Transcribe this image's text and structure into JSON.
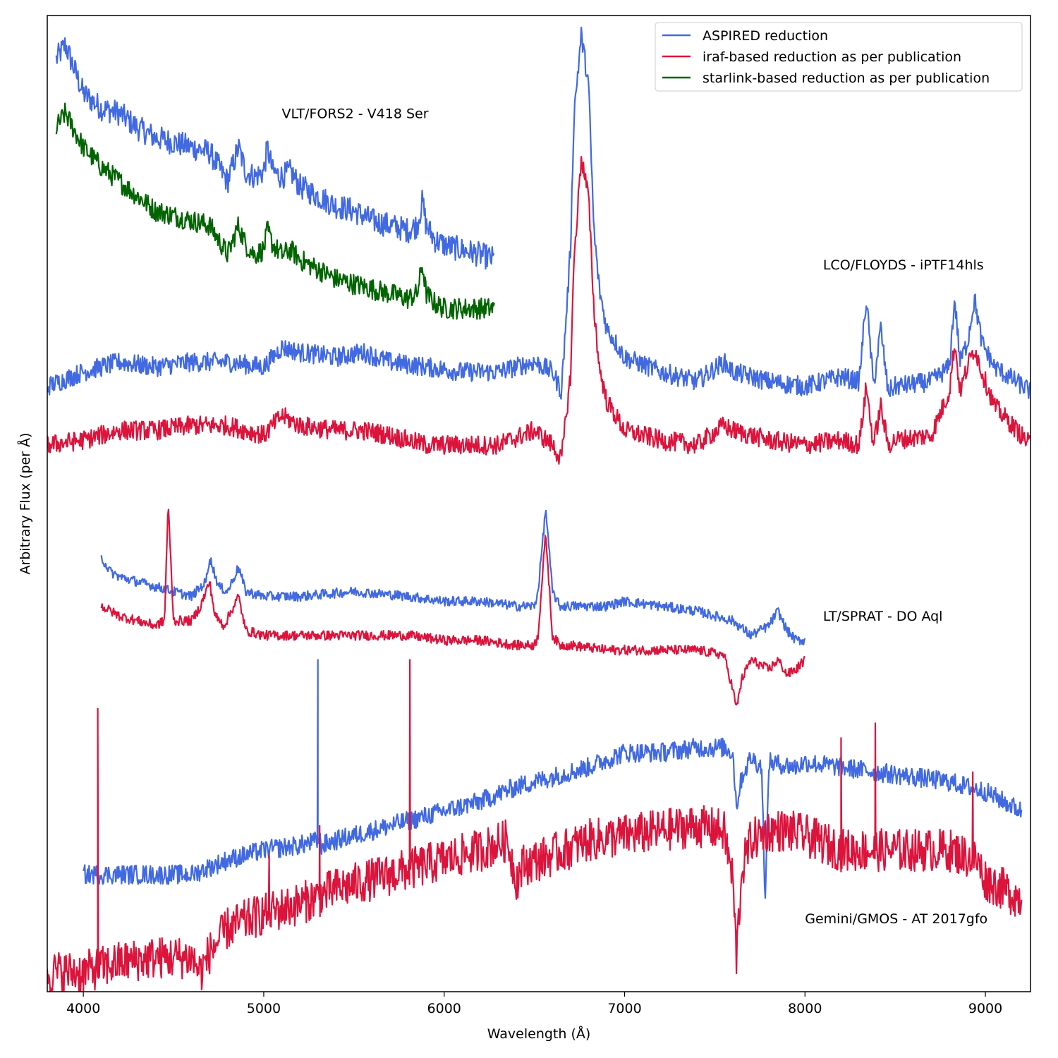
{
  "chart_data": {
    "type": "line",
    "title": "",
    "xlabel": "Wavelength (Å)",
    "ylabel": "Arbitrary Flux (per Å)",
    "xlim": [
      3800,
      9250
    ],
    "ylim": [
      0,
      100
    ],
    "xticks": [
      4000,
      5000,
      6000,
      7000,
      8000,
      9000
    ],
    "yticks_shown": false,
    "grid": false,
    "legend": {
      "position": "top-right",
      "entries": [
        {
          "label": "ASPIRED reduction",
          "color": "#4169e1"
        },
        {
          "label": "iraf-based reduction as per publication",
          "color": "#dc143c"
        },
        {
          "label": "starlink-based reduction as per publication",
          "color": "#006400"
        }
      ]
    },
    "annotations": [
      {
        "text": "VLT/FORS2 - V418 Ser",
        "x": 5100,
        "y": 89.5
      },
      {
        "text": "LCO/FLOYDS - iPTF14hls",
        "x": 8100,
        "y": 74
      },
      {
        "text": "LT/SPRAT - DO Aql",
        "x": 8100,
        "y": 38
      },
      {
        "text": "Gemini/GMOS - AT 2017gfo",
        "x": 8000,
        "y": 7
      }
    ],
    "series": [
      {
        "name": "VLT/FORS2 - V418 Ser ASPIRED",
        "reduction": "ASPIRED reduction",
        "color": "#4169e1",
        "noise": 1.3,
        "x": [
          3850,
          3900,
          4000,
          4100,
          4200,
          4300,
          4400,
          4500,
          4600,
          4700,
          4750,
          4800,
          4860,
          4900,
          4950,
          5000,
          5020,
          5050,
          5100,
          5150,
          5200,
          5300,
          5400,
          5500,
          5600,
          5700,
          5800,
          5850,
          5880,
          5900,
          5950,
          6000,
          6100,
          6200,
          6280
        ],
        "y": [
          95.5,
          97,
          92,
          90.5,
          90,
          88.5,
          87.5,
          87,
          86.5,
          86,
          84.5,
          83,
          86.5,
          84,
          83.5,
          84,
          86.5,
          84,
          83.5,
          84,
          82.5,
          81.5,
          80.5,
          80,
          79,
          78.5,
          78,
          78.5,
          81,
          78.5,
          77,
          76.5,
          76,
          75.5,
          75
        ]
      },
      {
        "name": "VLT/FORS2 - V418 Ser starlink",
        "reduction": "starlink-based reduction as per publication",
        "color": "#006400",
        "noise": 1.1,
        "x": [
          3850,
          3900,
          4000,
          4100,
          4200,
          4300,
          4400,
          4500,
          4600,
          4700,
          4750,
          4800,
          4860,
          4900,
          4950,
          5000,
          5020,
          5050,
          5100,
          5150,
          5200,
          5300,
          5400,
          5500,
          5600,
          5700,
          5800,
          5850,
          5880,
          5900,
          5950,
          6000,
          6100,
          6200,
          6280
        ],
        "y": [
          88.5,
          90,
          86.5,
          84.5,
          83,
          81.5,
          80,
          79.5,
          79,
          78.5,
          77,
          75.5,
          78.5,
          76.5,
          75.5,
          76,
          78,
          76.5,
          75.5,
          76,
          75,
          74,
          73,
          72.5,
          72,
          71.5,
          71,
          71.5,
          74.5,
          71.5,
          70.5,
          70,
          70,
          70,
          70
        ]
      },
      {
        "name": "LCO/FLOYDS - iPTF14hls ASPIRED",
        "reduction": "ASPIRED reduction",
        "color": "#4169e1",
        "noise": 1.0,
        "x": [
          3800,
          4000,
          4200,
          4400,
          4600,
          4800,
          5000,
          5100,
          5200,
          5400,
          5550,
          5700,
          5900,
          6100,
          6300,
          6500,
          6600,
          6650,
          6700,
          6720,
          6760,
          6800,
          6830,
          6860,
          6900,
          7000,
          7200,
          7400,
          7550,
          7600,
          7800,
          8000,
          8200,
          8300,
          8340,
          8380,
          8420,
          8460,
          8500,
          8700,
          8800,
          8830,
          8860,
          8900,
          8940,
          8980,
          9050,
          9250
        ],
        "y": [
          62,
          63.5,
          64.5,
          64,
          64.5,
          64.5,
          64,
          66,
          65.5,
          65,
          65.5,
          64.5,
          64,
          63.5,
          63.5,
          64.5,
          63.5,
          61.5,
          76,
          90,
          98,
          93,
          78,
          72,
          68,
          65,
          63.5,
          62.5,
          64.5,
          63.5,
          62.5,
          62,
          63,
          62.5,
          71,
          62,
          68,
          61.5,
          62,
          62.5,
          64,
          71,
          64.5,
          66.5,
          71,
          66.5,
          64,
          61.5
        ]
      },
      {
        "name": "LCO/FLOYDS - iPTF14hls iraf",
        "reduction": "iraf-based reduction as per publication",
        "color": "#dc143c",
        "noise": 1.0,
        "x": [
          3800,
          4000,
          4200,
          4400,
          4600,
          4800,
          5000,
          5100,
          5200,
          5400,
          5550,
          5700,
          5900,
          6100,
          6300,
          6500,
          6600,
          6650,
          6700,
          6720,
          6760,
          6800,
          6830,
          6860,
          6900,
          7000,
          7200,
          7400,
          7550,
          7600,
          7800,
          8000,
          8200,
          8300,
          8340,
          8380,
          8420,
          8460,
          8500,
          8700,
          8800,
          8830,
          8860,
          8900,
          8940,
          8980,
          9050,
          9250
        ],
        "y": [
          56,
          56.5,
          57.5,
          57.5,
          58,
          58,
          57,
          59,
          58,
          57.5,
          57.5,
          57,
          56,
          56,
          56,
          57.5,
          56,
          54.5,
          63,
          75,
          85.5,
          81.5,
          70,
          64,
          60.5,
          57.5,
          56.5,
          56,
          58,
          57.5,
          56.5,
          56,
          56.5,
          56,
          62,
          56,
          60,
          56,
          56.5,
          57,
          61.5,
          66.5,
          61.5,
          64,
          66,
          63.5,
          60,
          56
        ]
      },
      {
        "name": "LT/SPRAT - DO Aql ASPIRED",
        "reduction": "ASPIRED reduction",
        "color": "#4169e1",
        "noise": 0.5,
        "x": [
          4100,
          4150,
          4200,
          4300,
          4400,
          4500,
          4600,
          4680,
          4700,
          4750,
          4800,
          4860,
          4900,
          5000,
          5200,
          5500,
          5800,
          6000,
          6200,
          6400,
          6500,
          6520,
          6563,
          6600,
          6640,
          6700,
          6900,
          7000,
          7200,
          7400,
          7500,
          7600,
          7700,
          7800,
          7850,
          7900,
          7950,
          8000
        ],
        "y": [
          44.5,
          43,
          42.5,
          42,
          41.5,
          41,
          40.5,
          42,
          44.5,
          41.5,
          41,
          43.5,
          41,
          40.5,
          40.5,
          41,
          40.5,
          40,
          40,
          39.5,
          39.5,
          41,
          49.5,
          41,
          39.5,
          39.5,
          39.5,
          40,
          39.5,
          39,
          38.5,
          38,
          36.5,
          37.5,
          39,
          37,
          36,
          36
        ]
      },
      {
        "name": "LT/SPRAT - DO Aql iraf",
        "reduction": "iraf-based reduction as per publication",
        "color": "#dc143c",
        "noise": 0.5,
        "x": [
          4100,
          4200,
          4300,
          4400,
          4450,
          4470,
          4500,
          4600,
          4650,
          4700,
          4730,
          4780,
          4860,
          4900,
          5000,
          5200,
          5500,
          5800,
          6000,
          6200,
          6400,
          6500,
          6520,
          6563,
          6600,
          6640,
          6700,
          6900,
          7000,
          7200,
          7400,
          7550,
          7600,
          7620,
          7650,
          7700,
          7800,
          7850,
          7900,
          7950,
          8000
        ],
        "y": [
          39.5,
          38.5,
          38,
          37.5,
          38,
          50,
          38,
          38,
          39.5,
          42,
          38.5,
          37.5,
          40.5,
          37,
          36.5,
          36.5,
          36.5,
          36.5,
          36,
          36,
          35.5,
          35.5,
          36.5,
          47,
          36.5,
          35.5,
          35.5,
          35,
          35,
          35,
          35,
          34.5,
          31,
          29,
          32,
          34,
          33,
          34,
          32.5,
          33,
          34
        ]
      },
      {
        "name": "Gemini/GMOS - AT 2017gfo ASPIRED",
        "reduction": "ASPIRED reduction",
        "color": "#4169e1",
        "noise": 1.0,
        "x": [
          4000,
          4200,
          4400,
          4600,
          4800,
          5000,
          5200,
          5310,
          5320,
          5400,
          5600,
          5800,
          6000,
          6200,
          6400,
          6600,
          6800,
          7000,
          7200,
          7400,
          7550,
          7600,
          7620,
          7650,
          7700,
          7760,
          7780,
          7800,
          7950,
          8000,
          8200,
          8400,
          8600,
          8800,
          9000,
          9200
        ],
        "y": [
          12,
          12,
          12,
          12,
          13.5,
          14.5,
          15,
          15.5,
          15,
          15.5,
          16.5,
          17.5,
          18.5,
          19.5,
          21,
          22,
          23,
          24.5,
          24.5,
          25,
          25,
          24.5,
          19,
          22,
          24,
          23,
          9,
          23.5,
          23,
          23.5,
          23,
          22.5,
          22,
          21.5,
          20.5,
          18.5
        ]
      },
      {
        "name": "Gemini/GMOS - AT 2017gfo iraf",
        "reduction": "iraf-based reduction as per publication",
        "color": "#dc143c",
        "noise": 2.2,
        "x": [
          3800,
          4000,
          4200,
          4400,
          4600,
          4650,
          4700,
          4800,
          5000,
          5200,
          5400,
          5600,
          5800,
          6000,
          6200,
          6350,
          6400,
          6440,
          6600,
          6800,
          7000,
          7200,
          7400,
          7550,
          7600,
          7620,
          7650,
          7700,
          7800,
          7900,
          8000,
          8200,
          8400,
          8600,
          8800,
          8950,
          9000,
          9200
        ],
        "y": [
          2,
          2,
          3,
          3.5,
          3.5,
          2,
          4,
          6.5,
          8,
          9,
          10.5,
          11.5,
          12.5,
          13.5,
          14.5,
          15.5,
          11.5,
          13,
          14,
          15.5,
          16,
          16.5,
          17,
          16.5,
          11.5,
          3.5,
          12.5,
          15.5,
          16.5,
          16.5,
          16,
          14.5,
          14.5,
          14.5,
          14.5,
          13.5,
          11.5,
          9.5
        ]
      }
    ],
    "spikes": [
      {
        "series": "Gemini/GMOS - AT 2017gfo iraf",
        "x": 4080,
        "y": 29
      },
      {
        "series": "Gemini/GMOS - AT 2017gfo iraf",
        "x": 5030,
        "y": 14
      },
      {
        "series": "Gemini/GMOS - AT 2017gfo iraf",
        "x": 5310,
        "y": 17
      },
      {
        "series": "Gemini/GMOS - AT 2017gfo iraf",
        "x": 5810,
        "y": 34
      },
      {
        "series": "Gemini/GMOS - AT 2017gfo iraf",
        "x": 8200,
        "y": 26
      },
      {
        "series": "Gemini/GMOS - AT 2017gfo iraf",
        "x": 8390,
        "y": 27.5
      },
      {
        "series": "Gemini/GMOS - AT 2017gfo iraf",
        "x": 8930,
        "y": 22.5
      },
      {
        "series": "Gemini/GMOS - AT 2017gfo ASPIRED",
        "x": 5300,
        "y": 34
      }
    ]
  }
}
